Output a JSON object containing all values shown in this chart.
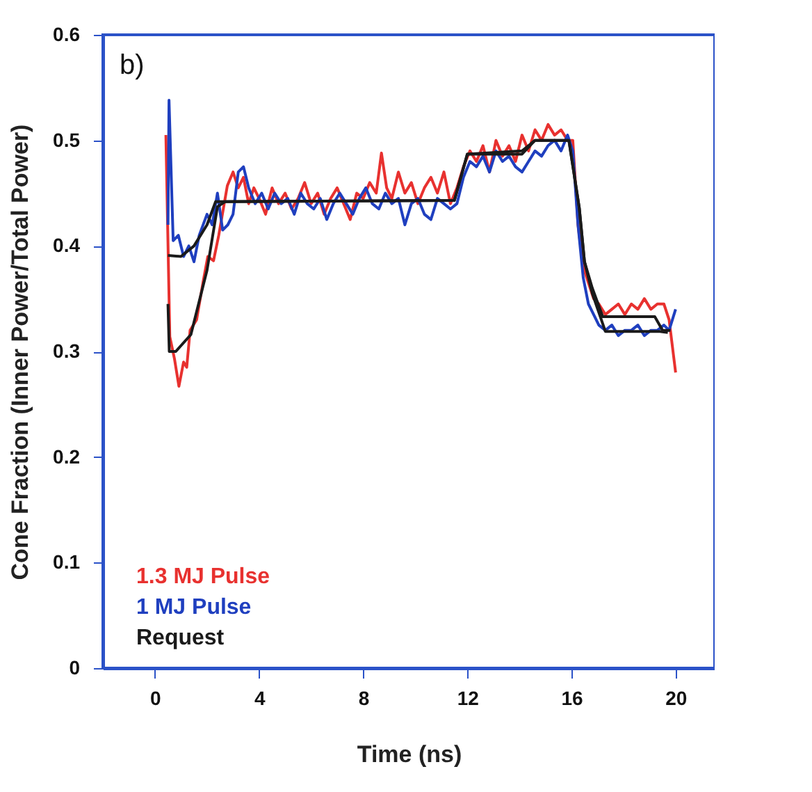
{
  "chart_data": {
    "type": "line",
    "xlabel": "Time (ns)",
    "ylabel": "Cone Fraction (Inner Power/Total Power)",
    "annotations": [
      "b)"
    ],
    "xlim": [
      -2,
      21.5
    ],
    "xticks": [
      0,
      4,
      8,
      12,
      16,
      20
    ],
    "ylim": [
      0,
      0.6
    ],
    "yticks": [
      0,
      0.1,
      0.2,
      0.3,
      0.4,
      0.5,
      0.6
    ],
    "grid": false,
    "legend": "bottom left",
    "marker": "none",
    "line_style": "solid",
    "series": [
      {
        "name": "1.3 MJ Pulse",
        "color": "#e8312f",
        "x": [
          0.42,
          0.57,
          0.75,
          0.92,
          1.1,
          1.22,
          1.35,
          1.6,
          1.85,
          2.03,
          2.25,
          2.45,
          2.78,
          3.0,
          3.2,
          3.4,
          3.6,
          3.8,
          4.0,
          4.25,
          4.5,
          4.75,
          5.0,
          5.25,
          5.5,
          5.75,
          6.0,
          6.25,
          6.5,
          6.75,
          7.0,
          7.25,
          7.5,
          7.75,
          8.0,
          8.25,
          8.5,
          8.7,
          8.9,
          9.1,
          9.35,
          9.6,
          9.85,
          10.1,
          10.35,
          10.6,
          10.85,
          11.1,
          11.35,
          11.6,
          11.85,
          12.1,
          12.35,
          12.6,
          12.85,
          13.1,
          13.35,
          13.6,
          13.85,
          14.1,
          14.35,
          14.6,
          14.85,
          15.1,
          15.35,
          15.6,
          15.85,
          16.05,
          16.25,
          16.45,
          16.65,
          16.85,
          17.05,
          17.3,
          17.55,
          17.8,
          18.05,
          18.3,
          18.55,
          18.8,
          19.05,
          19.3,
          19.55,
          19.75,
          20.0
        ],
        "values": [
          0.505,
          0.314,
          0.293,
          0.267,
          0.29,
          0.285,
          0.32,
          0.33,
          0.366,
          0.39,
          0.386,
          0.41,
          0.457,
          0.47,
          0.455,
          0.465,
          0.44,
          0.455,
          0.445,
          0.43,
          0.455,
          0.44,
          0.45,
          0.435,
          0.445,
          0.46,
          0.44,
          0.45,
          0.43,
          0.445,
          0.455,
          0.44,
          0.425,
          0.45,
          0.445,
          0.46,
          0.45,
          0.488,
          0.455,
          0.445,
          0.47,
          0.45,
          0.46,
          0.44,
          0.455,
          0.465,
          0.45,
          0.47,
          0.44,
          0.455,
          0.475,
          0.49,
          0.48,
          0.495,
          0.47,
          0.5,
          0.485,
          0.495,
          0.48,
          0.505,
          0.49,
          0.51,
          0.5,
          0.515,
          0.505,
          0.51,
          0.5,
          0.5,
          0.42,
          0.38,
          0.365,
          0.35,
          0.345,
          0.335,
          0.34,
          0.345,
          0.335,
          0.345,
          0.34,
          0.35,
          0.34,
          0.345,
          0.345,
          0.33,
          0.28
        ]
      },
      {
        "name": "1 MJ Pulse",
        "color": "#1f3fbf",
        "x": [
          0.5,
          0.54,
          0.7,
          0.9,
          1.1,
          1.3,
          1.5,
          1.7,
          2.0,
          2.2,
          2.4,
          2.6,
          2.8,
          3.0,
          3.2,
          3.4,
          3.6,
          3.85,
          4.1,
          4.35,
          4.6,
          4.85,
          5.1,
          5.35,
          5.6,
          5.85,
          6.1,
          6.35,
          6.6,
          6.85,
          7.1,
          7.35,
          7.6,
          7.85,
          8.1,
          8.35,
          8.6,
          8.85,
          9.1,
          9.35,
          9.6,
          9.85,
          10.1,
          10.35,
          10.6,
          10.85,
          11.1,
          11.35,
          11.6,
          11.85,
          12.1,
          12.35,
          12.6,
          12.85,
          13.1,
          13.35,
          13.6,
          13.85,
          14.1,
          14.35,
          14.6,
          14.85,
          15.1,
          15.35,
          15.6,
          15.85,
          16.05,
          16.25,
          16.45,
          16.65,
          16.85,
          17.05,
          17.3,
          17.55,
          17.8,
          18.05,
          18.3,
          18.55,
          18.8,
          19.05,
          19.3,
          19.55,
          19.75,
          20.0
        ],
        "values": [
          0.42,
          0.538,
          0.405,
          0.41,
          0.39,
          0.4,
          0.385,
          0.41,
          0.43,
          0.42,
          0.45,
          0.415,
          0.42,
          0.43,
          0.47,
          0.475,
          0.455,
          0.44,
          0.45,
          0.435,
          0.45,
          0.44,
          0.445,
          0.43,
          0.45,
          0.44,
          0.435,
          0.445,
          0.425,
          0.44,
          0.45,
          0.44,
          0.43,
          0.445,
          0.455,
          0.44,
          0.435,
          0.45,
          0.44,
          0.445,
          0.42,
          0.44,
          0.445,
          0.43,
          0.425,
          0.445,
          0.44,
          0.435,
          0.44,
          0.465,
          0.48,
          0.475,
          0.485,
          0.47,
          0.49,
          0.48,
          0.485,
          0.475,
          0.47,
          0.48,
          0.49,
          0.485,
          0.495,
          0.5,
          0.49,
          0.505,
          0.49,
          0.42,
          0.37,
          0.345,
          0.335,
          0.325,
          0.32,
          0.325,
          0.315,
          0.32,
          0.32,
          0.325,
          0.315,
          0.32,
          0.32,
          0.325,
          0.32,
          0.34
        ]
      },
      {
        "name": "Request",
        "color": "#1a1a1a",
        "x": [
          0.5,
          1.0,
          1.5,
          2.0,
          2.33,
          11.5,
          12.0,
          14.1,
          14.6,
          15.9,
          16.3,
          16.5,
          16.8,
          17.2,
          19.2,
          19.5,
          19.8
        ],
        "values": [
          0.391,
          0.39,
          0.4,
          0.42,
          0.442,
          0.443,
          0.487,
          0.487,
          0.5,
          0.5,
          0.436,
          0.385,
          0.36,
          0.333,
          0.333,
          0.32,
          0.32
        ]
      },
      {
        "color": "#1a1a1a",
        "x": [
          0.5,
          0.55,
          0.8,
          1.38,
          2.0,
          2.4,
          2.7,
          11.5,
          12.0,
          14.1,
          14.6,
          15.9,
          16.3,
          16.5,
          16.8,
          17.3,
          19.4,
          19.7
        ],
        "values": [
          0.345,
          0.3,
          0.3,
          0.316,
          0.377,
          0.437,
          0.442,
          0.443,
          0.487,
          0.49,
          0.5,
          0.5,
          0.436,
          0.385,
          0.355,
          0.319,
          0.319,
          0.318
        ]
      }
    ]
  }
}
